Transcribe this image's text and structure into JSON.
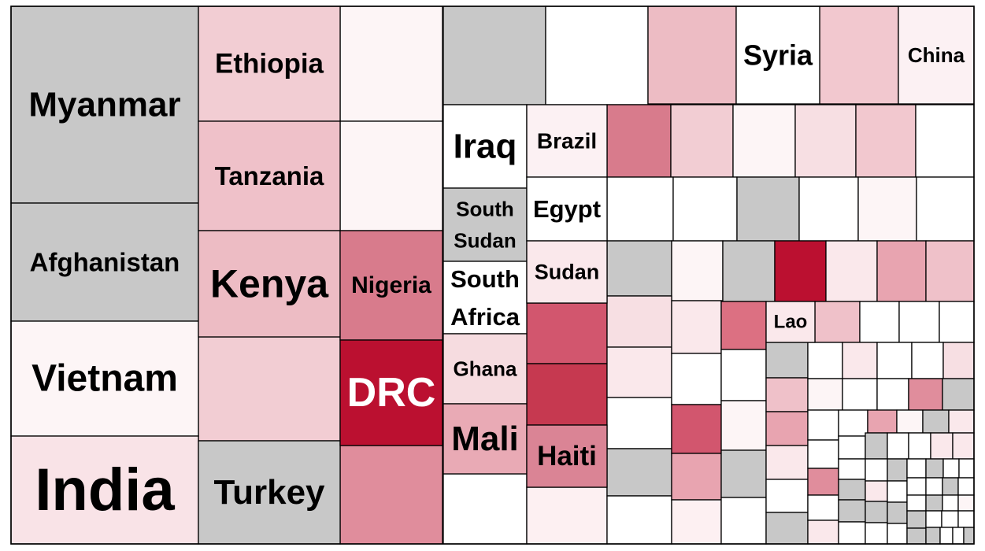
{
  "chart_data": {
    "type": "treemap",
    "title": "",
    "color_scale": {
      "low": "#ffffff",
      "high": "#bb1030",
      "missing": "#c8c8c8"
    },
    "labeled": [
      {
        "name": "Myanmar",
        "color": "#c8c8c8"
      },
      {
        "name": "Afghanistan",
        "color": "#c8c8c8"
      },
      {
        "name": "Vietnam",
        "color": "#fdf5f6"
      },
      {
        "name": "India",
        "color": "#f9e3e7"
      },
      {
        "name": "Ethiopia",
        "color": "#f2cdd3"
      },
      {
        "name": "Tanzania",
        "color": "#efc1c9"
      },
      {
        "name": "Kenya",
        "color": "#edbcc4"
      },
      {
        "name": "Turkey",
        "color": "#c8c8c8"
      },
      {
        "name": "Nigeria",
        "color": "#d87b8c"
      },
      {
        "name": "DRC",
        "color": "#bb1030"
      },
      {
        "name": "Iraq",
        "color": "#ffffff"
      },
      {
        "name": "South Sudan",
        "color": "#c8c8c8"
      },
      {
        "name": "South Africa",
        "color": "#ffffff"
      },
      {
        "name": "Ghana",
        "color": "#f6dce0"
      },
      {
        "name": "Mali",
        "color": "#e9aab5"
      },
      {
        "name": "Brazil",
        "color": "#fcf1f3"
      },
      {
        "name": "Egypt",
        "color": "#ffffff"
      },
      {
        "name": "Sudan",
        "color": "#fae8eb"
      },
      {
        "name": "Haiti",
        "color": "#da8495"
      },
      {
        "name": "Syria",
        "color": "#ffffff"
      },
      {
        "name": "China",
        "color": "#fcf1f3"
      },
      {
        "name": "Lao",
        "color": "#fae8eb"
      }
    ]
  }
}
